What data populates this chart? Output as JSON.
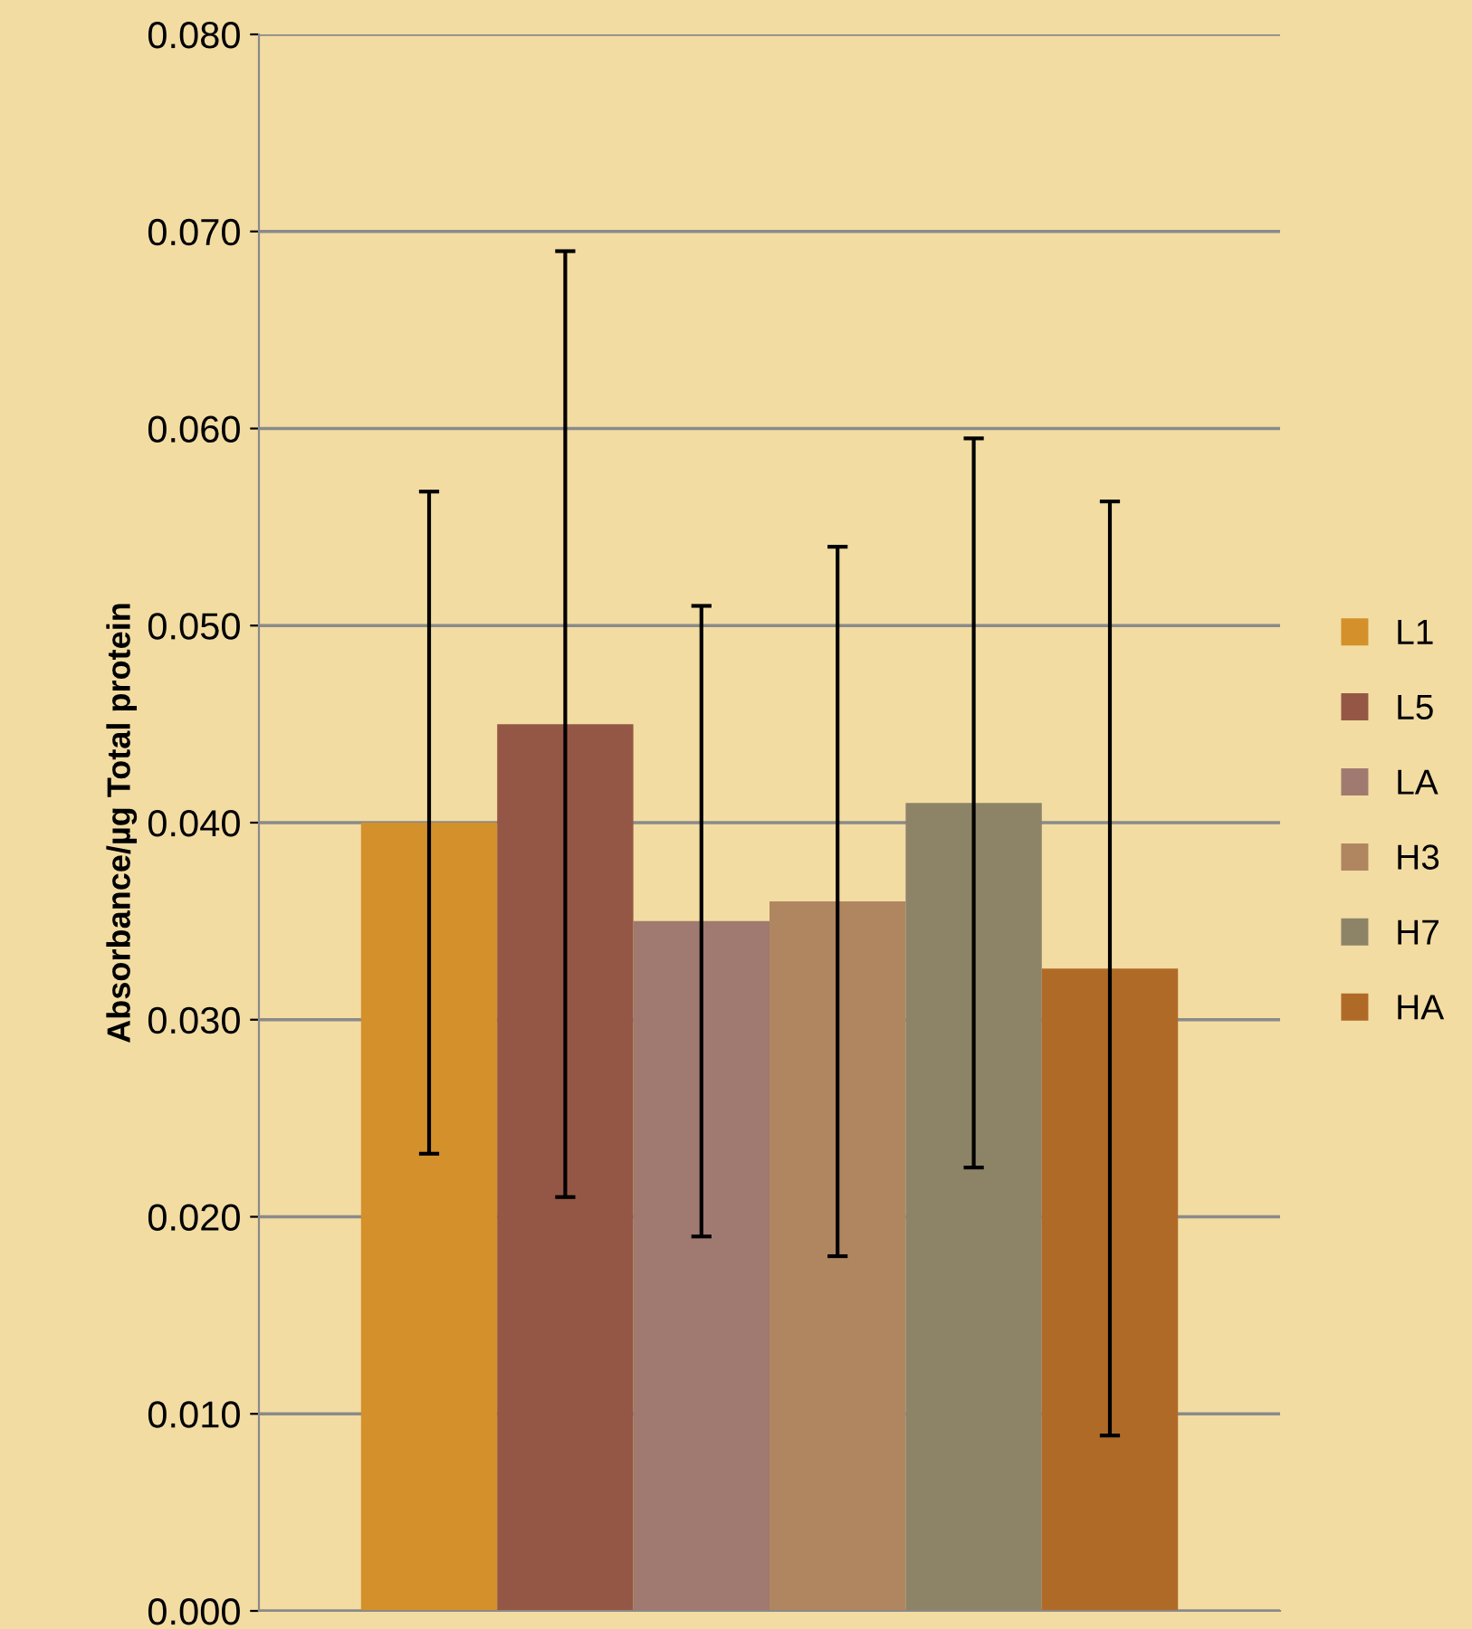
{
  "chart_data": {
    "type": "bar",
    "ylabel": "Absorbance/µg Total protein",
    "categories": [
      null
    ],
    "series": [
      {
        "name": "L1",
        "color": "#d4902a",
        "values": [
          0.04
        ],
        "errors": [
          0.0168
        ]
      },
      {
        "name": "L5",
        "color": "#955745",
        "values": [
          0.045
        ],
        "errors": [
          0.024
        ]
      },
      {
        "name": "LA",
        "color": "#a07a70",
        "values": [
          0.035
        ],
        "errors": [
          0.016
        ]
      },
      {
        "name": "H3",
        "color": "#b08660",
        "values": [
          0.036
        ],
        "errors": [
          0.018
        ]
      },
      {
        "name": "H7",
        "color": "#8d8468",
        "values": [
          0.041
        ],
        "errors": [
          0.0185
        ]
      },
      {
        "name": "HA",
        "color": "#b06a28",
        "values": [
          0.0326
        ],
        "errors": [
          0.0237
        ]
      }
    ],
    "ylim": [
      0,
      0.08
    ],
    "yticks": [
      {
        "value": 0,
        "label": "0.000"
      },
      {
        "value": 0.01,
        "label": "0.010"
      },
      {
        "value": 0.02,
        "label": "0.020"
      },
      {
        "value": 0.03,
        "label": "0.030"
      },
      {
        "value": 0.04,
        "label": "0.040"
      },
      {
        "value": 0.05,
        "label": "0.050"
      },
      {
        "value": 0.06,
        "label": "0.060"
      },
      {
        "value": 0.07,
        "label": "0.070"
      },
      {
        "value": 0.08,
        "label": "0.080"
      }
    ],
    "grid": "y",
    "legend": "right"
  }
}
